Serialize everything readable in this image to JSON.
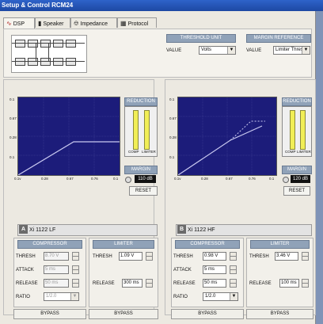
{
  "window": {
    "title": "Setup & Control RCM24"
  },
  "tabs": [
    {
      "label": "DSP",
      "icon": "dsp-icon"
    },
    {
      "label": "Speaker",
      "icon": "speaker-icon"
    },
    {
      "label": "Impedance",
      "icon": "impedance-icon"
    },
    {
      "label": "Protocol",
      "icon": "protocol-icon"
    }
  ],
  "threshold_unit": {
    "header": "THRESHOLD UNIT",
    "label": "VALUE",
    "value": "Volts"
  },
  "margin_reference": {
    "header": "MARGIN REFERENCE",
    "label": "VALUE",
    "value": "Limiter Thresh"
  },
  "channels": [
    {
      "letter": "A",
      "name": "Xi 1122 LF",
      "reduction_header": "REDUCTION",
      "comp_label": "COMP",
      "limiter_label": "LIMITER",
      "margin_header": "MARGIN",
      "margin_value": "110 dB",
      "reset_label": "RESET",
      "graph_ticks_x": [
        "0.1v",
        "0.28",
        "0.67",
        "0.76",
        "0.1"
      ],
      "graph_ticks_y": [
        "0.1",
        "0.67",
        "0.28",
        "0.1"
      ],
      "compressor": {
        "header": "COMPRESSOR",
        "thresh_label": "THRESH",
        "thresh": "8.70 V",
        "attack_label": "ATTACK",
        "attack": "5 ms",
        "release_label": "RELEASE",
        "release": "50 ms",
        "ratio_label": "RATIO",
        "ratio": "1/2.0",
        "enabled": false
      },
      "limiter": {
        "header": "LIMITER",
        "thresh_label": "THRESH",
        "thresh": "1.09 V",
        "release_label": "RELEASE",
        "release": "300 ms"
      },
      "bypass_comp": "BYPASS",
      "bypass_lim": "BYPASS"
    },
    {
      "letter": "B",
      "name": "Xi 1122 HF",
      "reduction_header": "REDUCTION",
      "comp_label": "COMP",
      "limiter_label": "LIMITER",
      "margin_header": "MARGIN",
      "margin_value": "120 dB",
      "reset_label": "RESET",
      "graph_ticks_x": [
        "0.1v",
        "0.28",
        "0.67",
        "0.76",
        "0.1"
      ],
      "graph_ticks_y": [
        "0.1",
        "0.67",
        "0.28",
        "0.1"
      ],
      "compressor": {
        "header": "COMPRESSOR",
        "thresh_label": "THRESH",
        "thresh": "0.98 V",
        "attack_label": "ATTACK",
        "attack": "5 ms",
        "release_label": "RELEASE",
        "release": "50 ms",
        "ratio_label": "RATIO",
        "ratio": "1/2.0",
        "enabled": true
      },
      "limiter": {
        "header": "LIMITER",
        "thresh_label": "THRESH",
        "thresh": "3.46 V",
        "release_label": "RELEASE",
        "release": "100 ms"
      },
      "bypass_comp": "BYPASS",
      "bypass_lim": "BYPASS"
    }
  ],
  "colors": {
    "graph_bg": "#1c1c7a",
    "curve": "#c9c9f0",
    "meter_bar": "#f1ee56",
    "header": "#90a2b8",
    "titlebar": "#2e63c9"
  }
}
